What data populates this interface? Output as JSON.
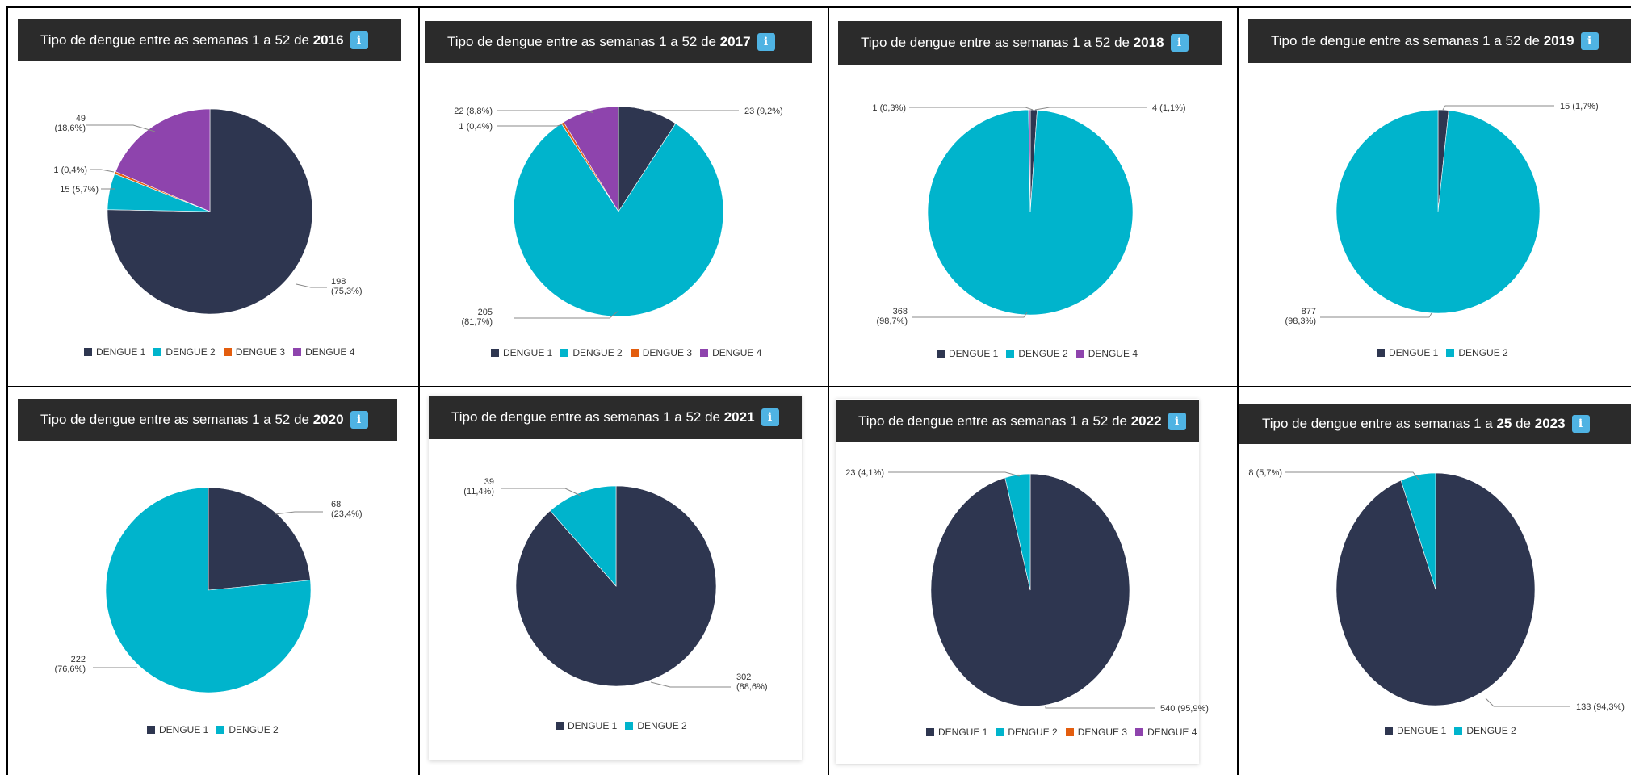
{
  "colors": {
    "dengue1": "#2e3650",
    "dengue2": "#00b4cc",
    "dengue3": "#e35d0e",
    "dengue4": "#8e44ad"
  },
  "title_prefix": "Tipo de dengue entre as semanas",
  "legend_labels": [
    "DENGUE 1",
    "DENGUE 2",
    "DENGUE 3",
    "DENGUE 4"
  ],
  "chart_data": [
    {
      "type": "pie",
      "title_pre": "Tipo de dengue entre as semanas 1 a 52 de",
      "year": "2016",
      "slices": [
        {
          "series": "DENGUE 1",
          "value": 198,
          "label_l1": "198",
          "label_l2": "(75,3%)"
        },
        {
          "series": "DENGUE 2",
          "value": 15,
          "label_l1": "15 (5,7%)",
          "label_l2": ""
        },
        {
          "series": "DENGUE 3",
          "value": 1,
          "label_l1": "1 (0,4%)",
          "label_l2": ""
        },
        {
          "series": "DENGUE 4",
          "value": 49,
          "label_l1": "49",
          "label_l2": "(18,6%)"
        }
      ],
      "legend": [
        "DENGUE 1",
        "DENGUE 2",
        "DENGUE 3",
        "DENGUE 4"
      ]
    },
    {
      "type": "pie",
      "title_pre": "Tipo de dengue entre as semanas 1 a 52 de",
      "year": "2017",
      "slices": [
        {
          "series": "DENGUE 1",
          "value": 23,
          "label_l1": "23 (9,2%)",
          "label_l2": ""
        },
        {
          "series": "DENGUE 2",
          "value": 205,
          "label_l1": "205",
          "label_l2": "(81,7%)"
        },
        {
          "series": "DENGUE 3",
          "value": 1,
          "label_l1": "1 (0,4%)",
          "label_l2": ""
        },
        {
          "series": "DENGUE 4",
          "value": 22,
          "label_l1": "22 (8,8%)",
          "label_l2": ""
        }
      ],
      "legend": [
        "DENGUE 1",
        "DENGUE 2",
        "DENGUE 3",
        "DENGUE 4"
      ]
    },
    {
      "type": "pie",
      "title_pre": "Tipo de dengue entre as semanas 1 a 52 de",
      "year": "2018",
      "slices": [
        {
          "series": "DENGUE 1",
          "value": 4,
          "label_l1": "4 (1,1%)",
          "label_l2": ""
        },
        {
          "series": "DENGUE 2",
          "value": 368,
          "label_l1": "368",
          "label_l2": "(98,7%)"
        },
        {
          "series": "DENGUE 4",
          "value": 1,
          "label_l1": "1 (0,3%)",
          "label_l2": ""
        }
      ],
      "legend": [
        "DENGUE 1",
        "DENGUE 2",
        "DENGUE 4"
      ]
    },
    {
      "type": "pie",
      "title_pre": "Tipo de dengue entre as semanas 1 a 52 de",
      "year": "2019",
      "slices": [
        {
          "series": "DENGUE 1",
          "value": 15,
          "label_l1": "15 (1,7%)",
          "label_l2": ""
        },
        {
          "series": "DENGUE 2",
          "value": 877,
          "label_l1": "877",
          "label_l2": "(98,3%)"
        }
      ],
      "legend": [
        "DENGUE 1",
        "DENGUE 2"
      ]
    },
    {
      "type": "pie",
      "title_pre": "Tipo de dengue entre as semanas 1 a 52 de",
      "year": "2020",
      "slices": [
        {
          "series": "DENGUE 1",
          "value": 68,
          "label_l1": "68",
          "label_l2": "(23,4%)"
        },
        {
          "series": "DENGUE 2",
          "value": 222,
          "label_l1": "222",
          "label_l2": "(76,6%)"
        }
      ],
      "legend": [
        "DENGUE 1",
        "DENGUE 2"
      ]
    },
    {
      "type": "pie",
      "title_pre": "Tipo de dengue entre as semanas 1 a 52 de",
      "year": "2021",
      "slices": [
        {
          "series": "DENGUE 1",
          "value": 302,
          "label_l1": "302",
          "label_l2": "(88,6%)"
        },
        {
          "series": "DENGUE 2",
          "value": 39,
          "label_l1": "39",
          "label_l2": "(11,4%)"
        }
      ],
      "legend": [
        "DENGUE 1",
        "DENGUE 2"
      ]
    },
    {
      "type": "pie",
      "title_pre": "Tipo de dengue entre as semanas 1 a 52 de",
      "year": "2022",
      "slices": [
        {
          "series": "DENGUE 1",
          "value": 540,
          "label_l1": "540 (95,9%)",
          "label_l2": ""
        },
        {
          "series": "DENGUE 2",
          "value": 23,
          "label_l1": "23 (4,1%)",
          "label_l2": ""
        }
      ],
      "legend": [
        "DENGUE 1",
        "DENGUE 2",
        "DENGUE 3",
        "DENGUE 4"
      ]
    },
    {
      "type": "pie",
      "title_pre": "Tipo de dengue entre as semanas 1 a",
      "title_mid": "25",
      "title_post": "de",
      "year": "2023",
      "slices": [
        {
          "series": "DENGUE 1",
          "value": 133,
          "label_l1": "133 (94,3%)",
          "label_l2": ""
        },
        {
          "series": "DENGUE 2",
          "value": 8,
          "label_l1": "8 (5,7%)",
          "label_l2": ""
        }
      ],
      "legend": [
        "DENGUE 1",
        "DENGUE 2"
      ]
    }
  ]
}
